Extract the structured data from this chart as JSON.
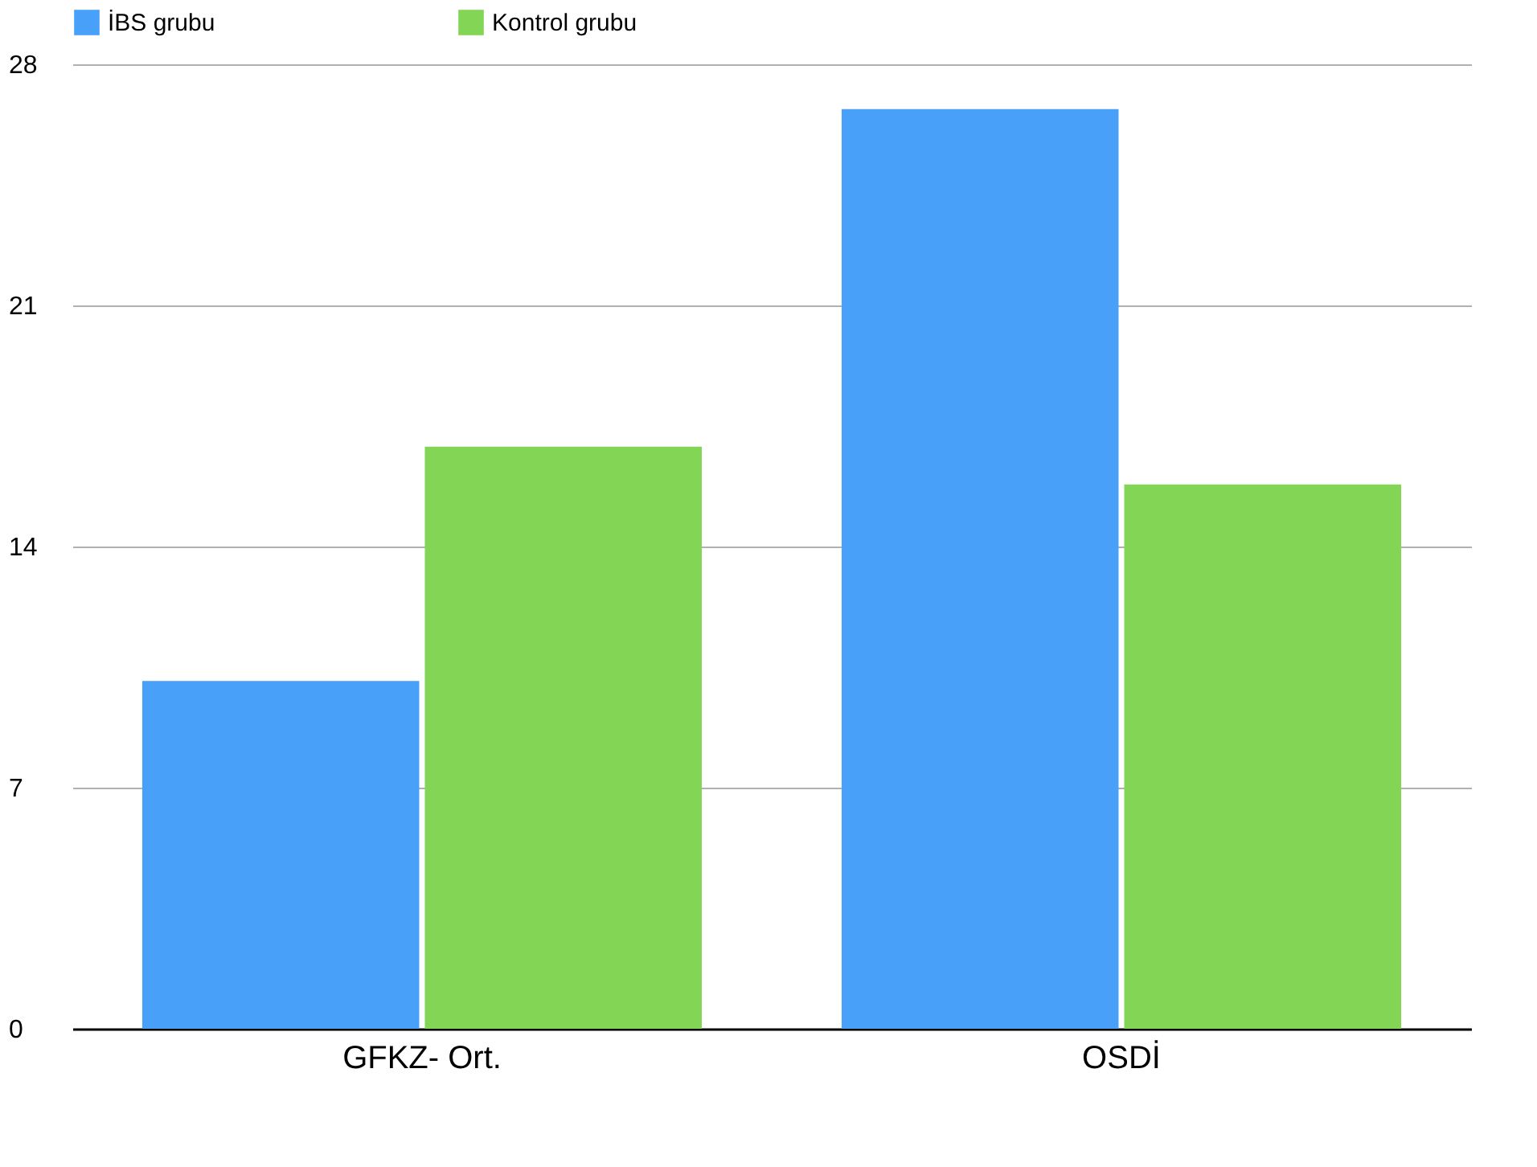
{
  "chart_data": {
    "type": "bar",
    "categories": [
      "GFKZ- Ort.",
      "OSDİ"
    ],
    "series": [
      {
        "name": "İBS grubu",
        "color": "#48a0f8",
        "values": [
          10.1,
          26.7
        ]
      },
      {
        "name": "Kontrol grubu",
        "color": "#83d655",
        "values": [
          16.9,
          15.8
        ]
      }
    ],
    "ylim": [
      0,
      28
    ],
    "yticks": [
      0,
      7,
      14,
      21,
      28
    ],
    "grid": "y",
    "legend": "top"
  }
}
